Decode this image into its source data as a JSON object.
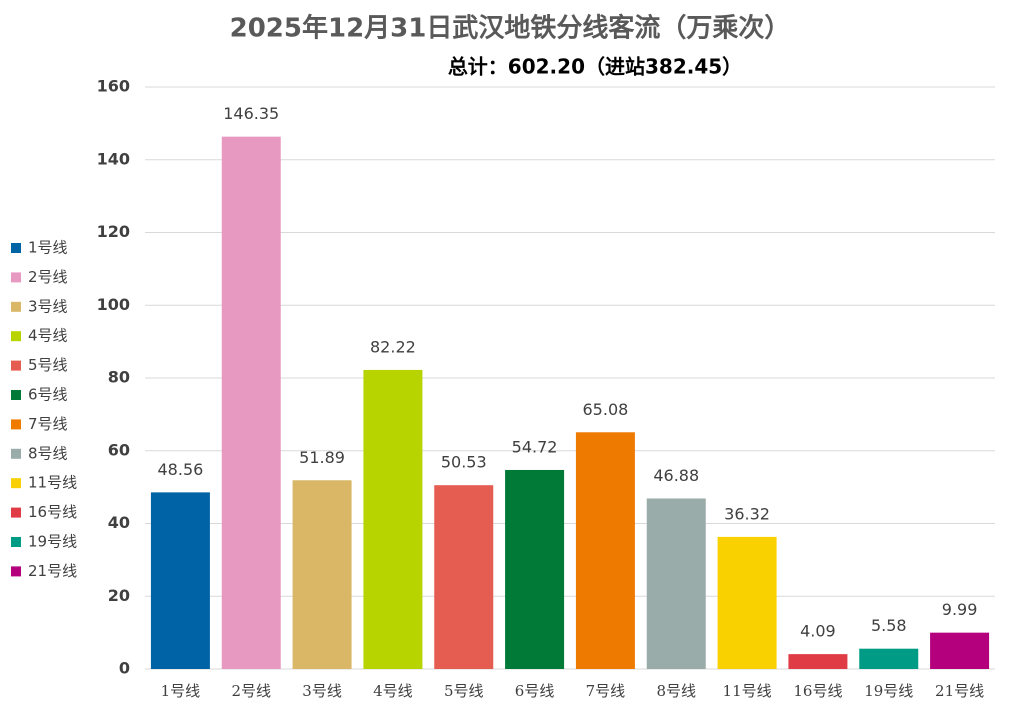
{
  "chart_data": {
    "type": "bar",
    "title": "2025年12月31日武汉地铁分线客流（万乘次）",
    "subtitle": "总计：602.20（进站382.45）",
    "categories": [
      "1号线",
      "2号线",
      "3号线",
      "4号线",
      "5号线",
      "6号线",
      "7号线",
      "8号线",
      "11号线",
      "16号线",
      "19号线",
      "21号线"
    ],
    "values": [
      48.56,
      146.35,
      51.89,
      82.22,
      50.53,
      54.72,
      65.08,
      46.88,
      36.32,
      4.09,
      5.58,
      9.99
    ],
    "colors": [
      "#0063a6",
      "#e899c1",
      "#d9b766",
      "#b8d400",
      "#e55c51",
      "#007a36",
      "#ef7a00",
      "#9aaca9",
      "#f9d000",
      "#e03c45",
      "#009b85",
      "#b5007e"
    ],
    "ylim": [
      0,
      160
    ],
    "yticks": [
      0,
      20,
      40,
      60,
      80,
      100,
      120,
      140,
      160
    ],
    "grid": true,
    "legend": "left"
  }
}
